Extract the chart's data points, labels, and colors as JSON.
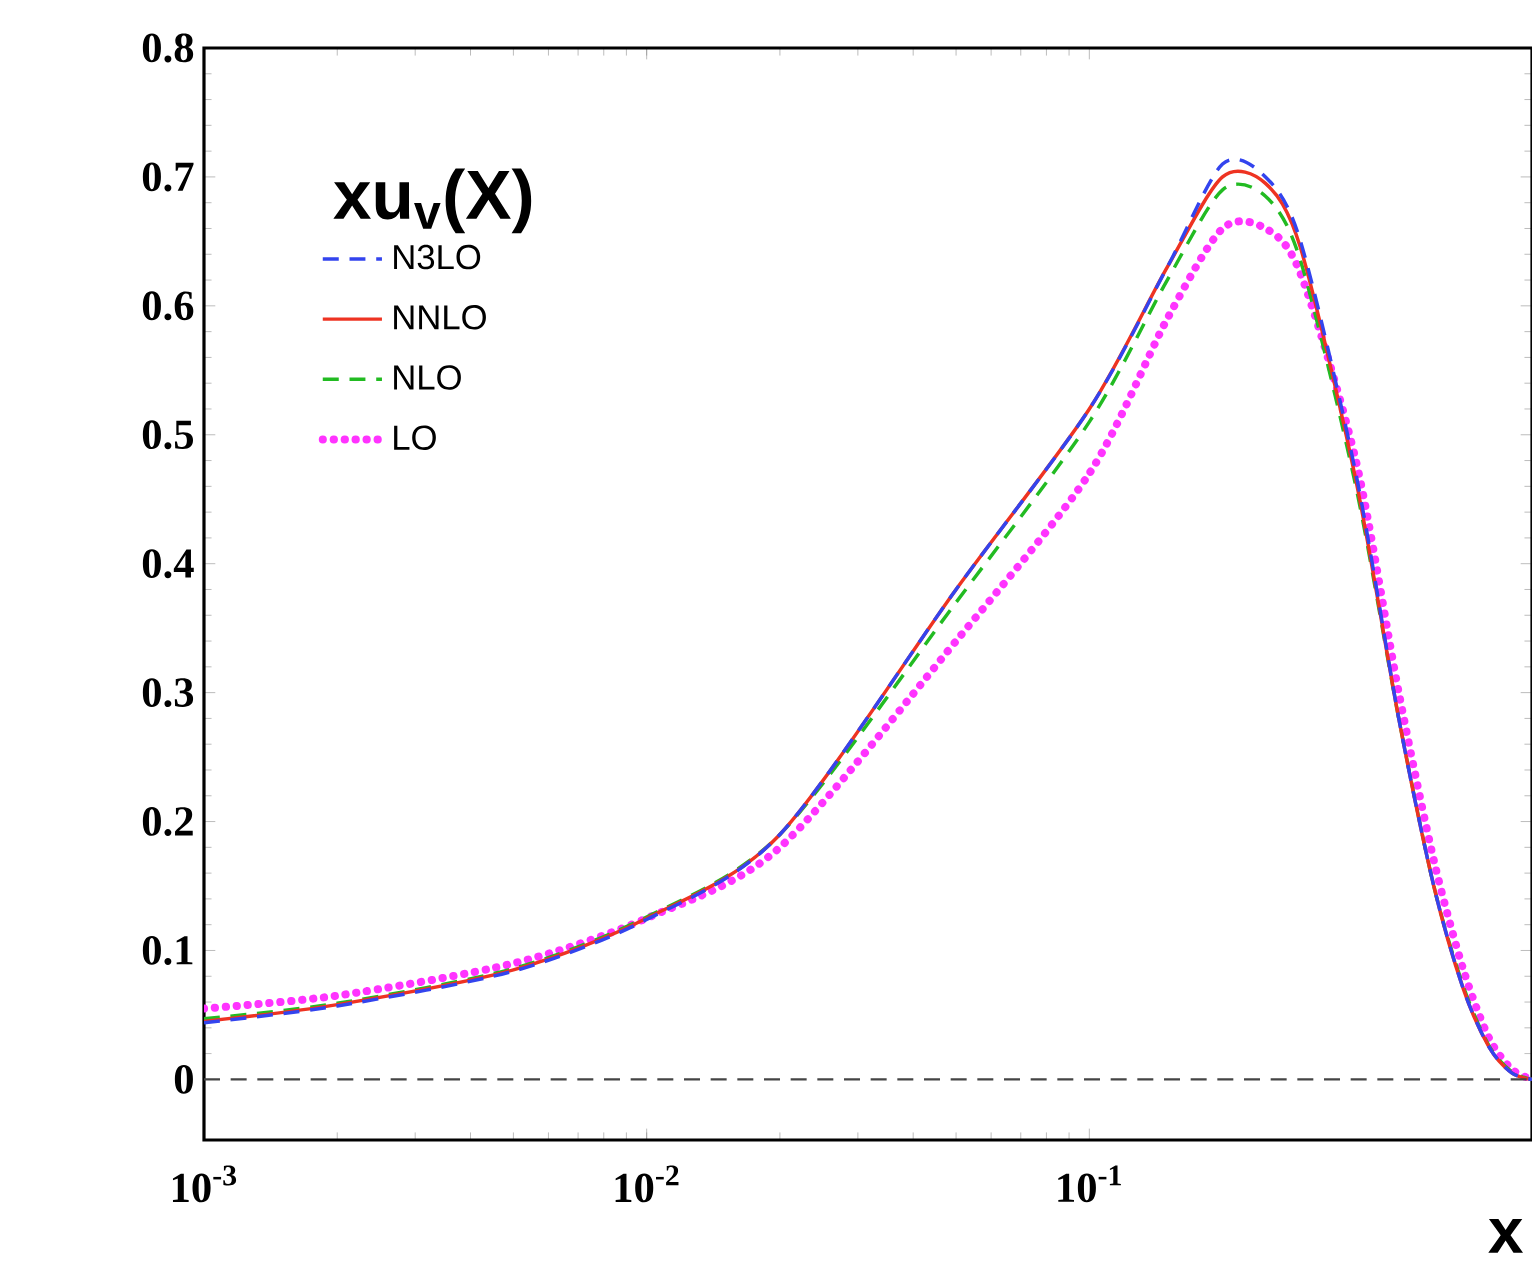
{
  "chart_data": {
    "type": "line",
    "title": "xu$_{v}$(X)",
    "xlabel": "x",
    "x": [
      0.001,
      0.002,
      0.005,
      0.01,
      0.02,
      0.05,
      0.1,
      0.15,
      0.2,
      0.25,
      0.3,
      0.4,
      0.5,
      0.6,
      0.7,
      0.8,
      0.9,
      1.0
    ],
    "series": [
      {
        "name": "N3LO",
        "color": "#3344ee",
        "line_style": "dashed",
        "values": [
          0.044,
          0.057,
          0.084,
          0.124,
          0.19,
          0.38,
          0.52,
          0.63,
          0.71,
          0.7,
          0.65,
          0.47,
          0.28,
          0.15,
          0.07,
          0.025,
          0.005,
          0
        ]
      },
      {
        "name": "NNLO",
        "color": "#ee3322",
        "line_style": "solid",
        "values": [
          0.045,
          0.058,
          0.085,
          0.125,
          0.19,
          0.38,
          0.52,
          0.63,
          0.7,
          0.695,
          0.645,
          0.465,
          0.28,
          0.15,
          0.07,
          0.025,
          0.005,
          0
        ]
      },
      {
        "name": "NLO",
        "color": "#22bb22",
        "line_style": "dashed",
        "values": [
          0.047,
          0.059,
          0.086,
          0.126,
          0.19,
          0.37,
          0.51,
          0.62,
          0.69,
          0.685,
          0.635,
          0.46,
          0.28,
          0.15,
          0.072,
          0.026,
          0.006,
          0
        ]
      },
      {
        "name": "LO",
        "color": "#ff33ff",
        "line_style": "dotted",
        "values": [
          0.055,
          0.065,
          0.09,
          0.125,
          0.18,
          0.34,
          0.47,
          0.59,
          0.66,
          0.66,
          0.625,
          0.48,
          0.3,
          0.17,
          0.085,
          0.032,
          0.008,
          0
        ]
      }
    ],
    "log": "x",
    "xlim": [
      0.001,
      1
    ],
    "ylim": [
      -0.047,
      0.8
    ],
    "xticks": [
      {
        "value": 0.001,
        "label": "10$^{-3}$"
      },
      {
        "value": 0.01,
        "label": "10$^{-2}$"
      },
      {
        "value": 0.1,
        "label": "10$^{-1}$"
      }
    ],
    "yticks": [
      0,
      0.1,
      0.2,
      0.3,
      0.4,
      0.5,
      0.6,
      0.7,
      0.8
    ],
    "ref_lines": [
      {
        "axis": "y",
        "value": 0,
        "color": "#444444",
        "line_style": "dashed"
      }
    ],
    "legend": "top left",
    "grid": false
  }
}
